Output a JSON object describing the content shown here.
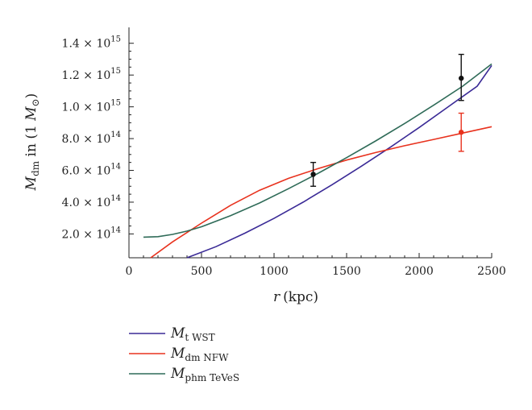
{
  "chart_data": {
    "type": "line",
    "xlabel": {
      "var": "r",
      "unit": "(kpc)"
    },
    "ylabel": {
      "var": "M",
      "sub": "dm",
      "mid": " in (1 ",
      "unit_var": "M",
      "unit_sub": "⊙",
      "end": ")"
    },
    "xlim": [
      0,
      2500
    ],
    "ylim": [
      50000000000000,
      1500000000000000
    ],
    "x_ticks": [
      {
        "value": 0,
        "label": "0"
      },
      {
        "value": 500,
        "label": "500"
      },
      {
        "value": 1000,
        "label": "1000"
      },
      {
        "value": 1500,
        "label": "1500"
      },
      {
        "value": 2000,
        "label": "2000"
      },
      {
        "value": 2500,
        "label": "2500"
      }
    ],
    "y_ticks": [
      {
        "value": 200000000000000,
        "mantissa": "2.0",
        "exp": "14"
      },
      {
        "value": 400000000000000,
        "mantissa": "4.0",
        "exp": "14"
      },
      {
        "value": 600000000000000,
        "mantissa": "6.0",
        "exp": "14"
      },
      {
        "value": 800000000000000,
        "mantissa": "8.0",
        "exp": "14"
      },
      {
        "value": 1000000000000000,
        "mantissa": "1.0",
        "exp": "15"
      },
      {
        "value": 1200000000000000,
        "mantissa": "1.2",
        "exp": "15"
      },
      {
        "value": 1400000000000000,
        "mantissa": "1.4",
        "exp": "15"
      }
    ],
    "series": [
      {
        "name": "M_t WST",
        "legend": {
          "main": "M",
          "sub": "t",
          "rest": " WST"
        },
        "color": "#3a2a96",
        "x": [
          400,
          600,
          800,
          1000,
          1200,
          1400,
          1600,
          1800,
          2000,
          2200,
          2400,
          2500
        ],
        "y": [
          50000000000000,
          120000000000000,
          205000000000000,
          298000000000000,
          400000000000000,
          510000000000000,
          625000000000000,
          745000000000000,
          870000000000000,
          1000000000000000,
          1130000000000000,
          1260000000000000
        ]
      },
      {
        "name": "M_dm NFW",
        "legend": {
          "main": "M",
          "sub": "dm",
          "rest": " NFW"
        },
        "color": "#e8321e",
        "x": [
          150,
          300,
          500,
          700,
          900,
          1100,
          1300,
          1500,
          1700,
          1900,
          2100,
          2300,
          2500
        ],
        "y": [
          50000000000000,
          150000000000000,
          268000000000000,
          380000000000000,
          475000000000000,
          550000000000000,
          610000000000000,
          665000000000000,
          712000000000000,
          755000000000000,
          795000000000000,
          835000000000000,
          875000000000000
        ]
      },
      {
        "name": "M_phm TeVeS",
        "legend": {
          "main": "M",
          "sub": "phm",
          "rest": " TeVeS"
        },
        "color": "#2f6b58",
        "x": [
          100,
          200,
          300,
          400,
          500,
          700,
          900,
          1100,
          1300,
          1500,
          1700,
          1900,
          2100,
          2300,
          2500
        ],
        "y": [
          180000000000000,
          183000000000000,
          197000000000000,
          218000000000000,
          245000000000000,
          315000000000000,
          395000000000000,
          485000000000000,
          580000000000000,
          680000000000000,
          785000000000000,
          895000000000000,
          1010000000000000,
          1130000000000000,
          1270000000000000
        ]
      }
    ],
    "points": [
      {
        "x": 1270,
        "y": 575000000000000,
        "err_low": 500000000000000,
        "err_high": 650000000000000,
        "color": "#111111"
      },
      {
        "x": 2290,
        "y": 1180000000000000,
        "err_low": 1040000000000000,
        "err_high": 1330000000000000,
        "color": "#111111"
      },
      {
        "x": 2290,
        "y": 840000000000000,
        "err_low": 720000000000000,
        "err_high": 960000000000000,
        "color": "#e8321e"
      }
    ]
  }
}
